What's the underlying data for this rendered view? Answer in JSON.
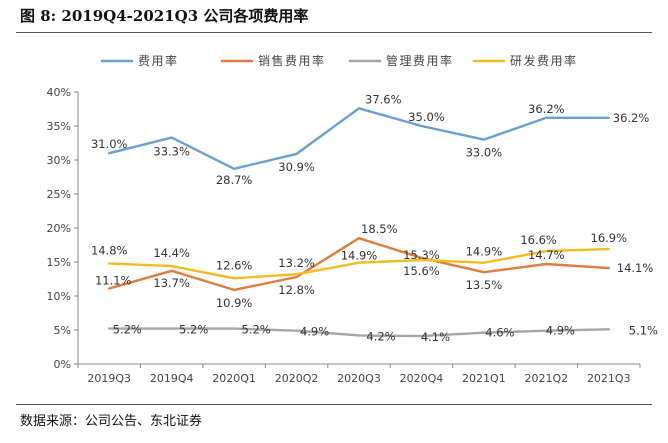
{
  "figure": {
    "title": "图 8:  2019Q4-2021Q3 公司各项费用率",
    "source": "数据来源：公司公告、东北证券"
  },
  "chart_data": {
    "type": "line",
    "title": "2019Q4-2021Q3 公司各项费用率",
    "xlabel": "",
    "ylabel": "",
    "categories": [
      "2019Q3",
      "2019Q4",
      "2020Q1",
      "2020Q2",
      "2020Q3",
      "2020Q4",
      "2021Q1",
      "2021Q2",
      "2021Q3"
    ],
    "ylim": [
      0,
      40
    ],
    "yticks": [
      0,
      5,
      10,
      15,
      20,
      25,
      30,
      35,
      40
    ],
    "ytick_labels": [
      "0%",
      "5%",
      "10%",
      "15%",
      "20%",
      "25%",
      "30%",
      "35%",
      "40%"
    ],
    "grid": false,
    "legend_position": "top",
    "series": [
      {
        "name": "费用率",
        "color": "#6b9fd4",
        "values": [
          31.0,
          33.3,
          28.7,
          30.9,
          37.6,
          35.0,
          33.0,
          36.2,
          36.2
        ],
        "labels": [
          {
            "i": 0,
            "text": "31.0%"
          },
          {
            "i": 1,
            "text": "33.3%"
          },
          {
            "i": 2,
            "text": "28.7%"
          },
          {
            "i": 3,
            "text": "30.9%"
          },
          {
            "i": 4,
            "text": "37.6%"
          },
          {
            "i": 5,
            "text": "35.0%"
          },
          {
            "i": 6,
            "text": "33.0%"
          },
          {
            "i": 7,
            "text": "36.2%"
          },
          {
            "i": 8,
            "text": "36.2%"
          }
        ]
      },
      {
        "name": "销售费用率",
        "color": "#e07c3c",
        "values": [
          11.1,
          13.7,
          10.9,
          12.8,
          18.5,
          15.6,
          13.5,
          14.7,
          14.1
        ],
        "labels": [
          {
            "i": 0,
            "text": "11.1%"
          },
          {
            "i": 1,
            "text": "13.7%"
          },
          {
            "i": 2,
            "text": "10.9%"
          },
          {
            "i": 3,
            "text": "12.8%"
          },
          {
            "i": 4,
            "text": "18.5%"
          },
          {
            "i": 5,
            "text": "15.6%"
          },
          {
            "i": 6,
            "text": "13.5%"
          },
          {
            "i": 7,
            "text": "14.7%"
          },
          {
            "i": 8,
            "text": "14.1%"
          }
        ]
      },
      {
        "name": "管理费用率",
        "color": "#a5a5a5",
        "values": [
          5.2,
          5.2,
          5.2,
          4.9,
          4.2,
          4.1,
          4.6,
          4.9,
          5.1
        ],
        "labels": [
          {
            "i": 0,
            "text": "5.2%"
          },
          {
            "i": 1,
            "text": "5.2%"
          },
          {
            "i": 2,
            "text": "5.2%"
          },
          {
            "i": 3,
            "text": "4.9%"
          },
          {
            "i": 4,
            "text": "4.2%"
          },
          {
            "i": 5,
            "text": "4.1%"
          },
          {
            "i": 6,
            "text": "4.6%"
          },
          {
            "i": 7,
            "text": "4.9%"
          },
          {
            "i": 8,
            "text": "5.1%"
          }
        ]
      },
      {
        "name": "研发费用率",
        "color": "#f2bb1f",
        "values": [
          14.8,
          14.4,
          12.6,
          13.2,
          14.9,
          15.3,
          14.9,
          16.6,
          16.9
        ],
        "labels": [
          {
            "i": 0,
            "text": "14.8%"
          },
          {
            "i": 1,
            "text": "14.4%"
          },
          {
            "i": 2,
            "text": "12.6%"
          },
          {
            "i": 3,
            "text": "13.2%"
          },
          {
            "i": 4,
            "text": "14.9%"
          },
          {
            "i": 5,
            "text": "15.3%"
          },
          {
            "i": 6,
            "text": "14.9%"
          },
          {
            "i": 7,
            "text": "16.6%"
          },
          {
            "i": 8,
            "text": "16.9%"
          }
        ]
      }
    ]
  }
}
